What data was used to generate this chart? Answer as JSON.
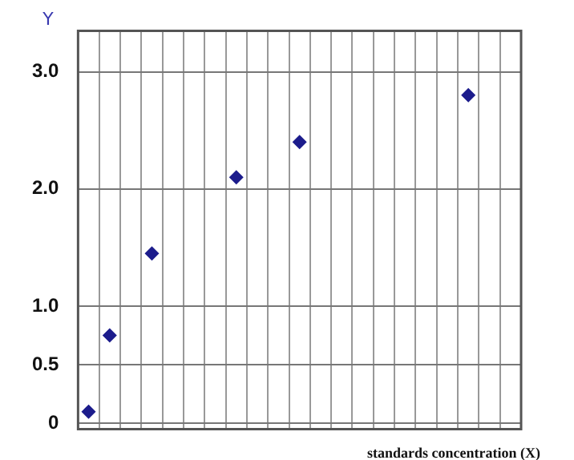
{
  "chart_data": {
    "type": "scatter",
    "xlabel": "standards concentration (X)",
    "ylabel": "Y",
    "categories": [
      null,
      null,
      null,
      null,
      null,
      null,
      null,
      null,
      null,
      null,
      null,
      null,
      null,
      null,
      null,
      null,
      null,
      null,
      null,
      null,
      null
    ],
    "series": [
      {
        "color": "#1c1c8c",
        "values": [
          0.1,
          0.75,
          null,
          1.45,
          null,
          null,
          null,
          2.1,
          null,
          null,
          2.4,
          null,
          null,
          null,
          null,
          null,
          null,
          null,
          2.8,
          null,
          null
        ]
      }
    ],
    "ylim": [
      -0.05,
      3.35
    ],
    "yticks": [
      0,
      0.5,
      {
        "value": 1,
        "label": "1.0"
      },
      {
        "value": 2,
        "label": "2.0"
      },
      {
        "value": 3,
        "label": "3.0"
      }
    ],
    "tick_labels": "y",
    "grid": true,
    "marker": "diamond",
    "legend": false
  }
}
